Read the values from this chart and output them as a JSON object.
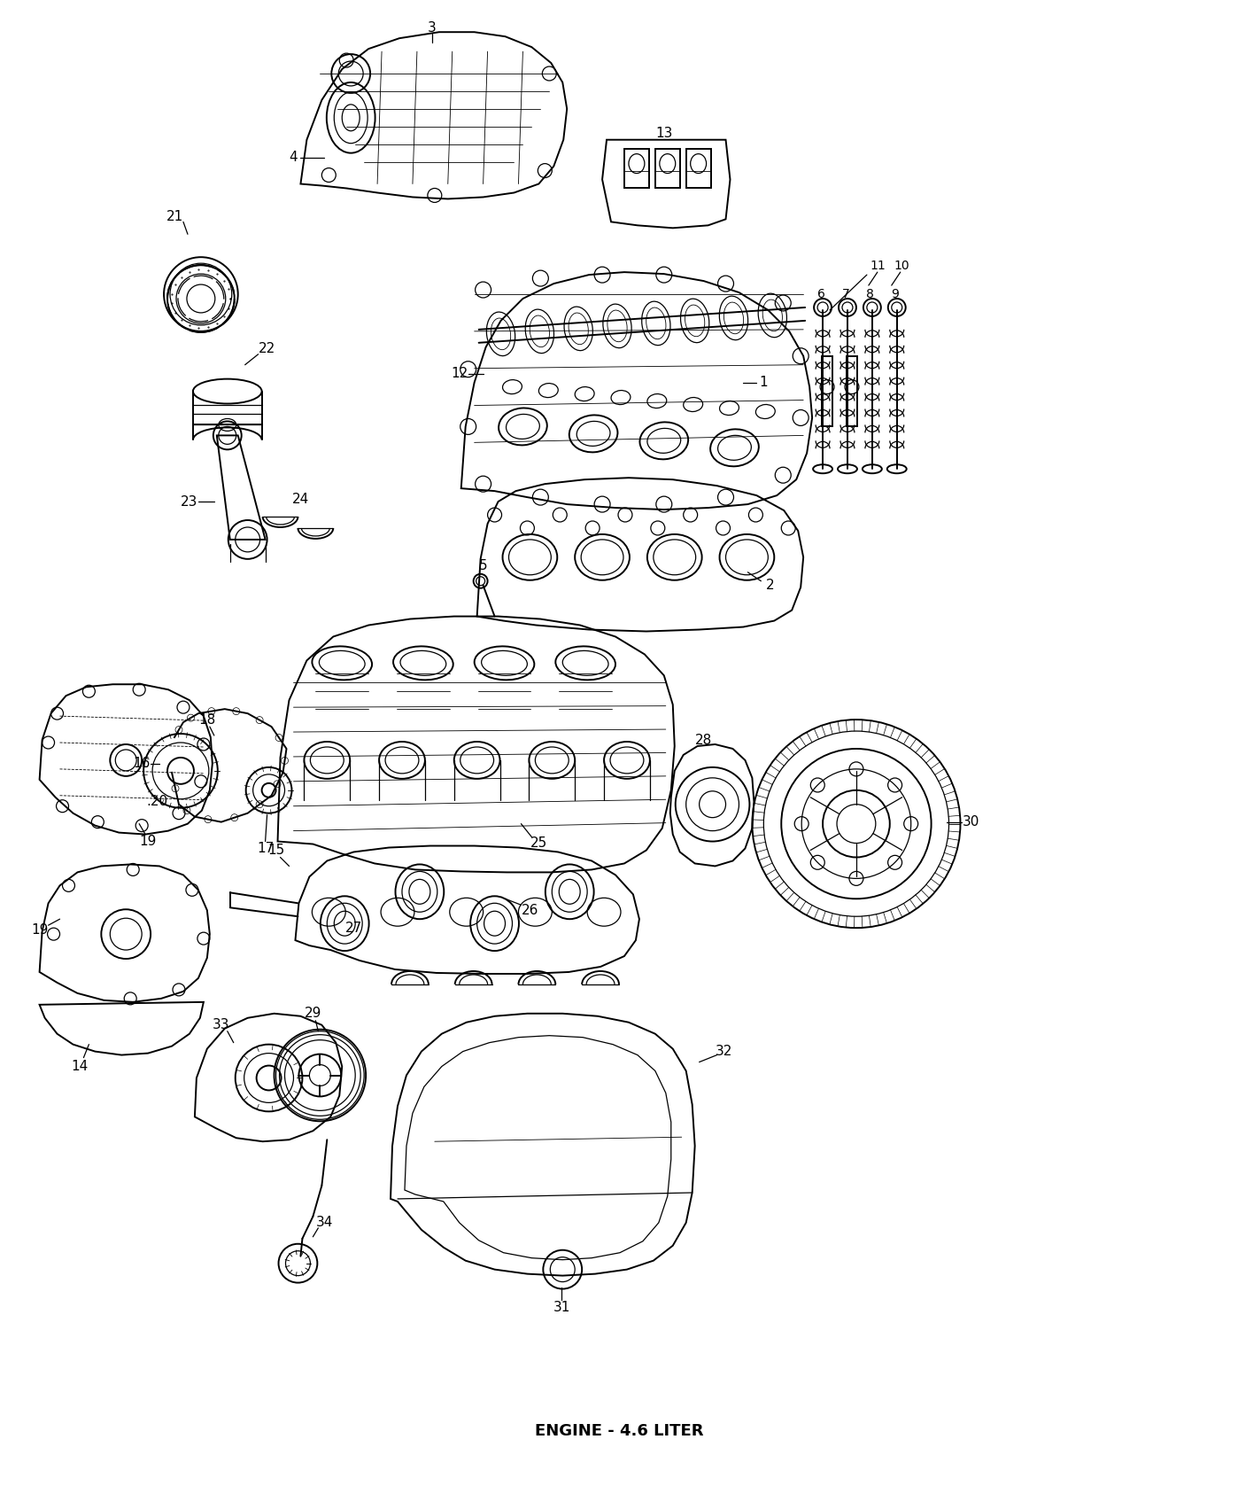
{
  "title": "ENGINE - 4.6 LITER",
  "title_fontsize": 13,
  "title_fontweight": "bold",
  "bg_color": "#ffffff",
  "fig_width": 13.98,
  "fig_height": 16.77,
  "dpi": 100,
  "label_fontsize": 10.5,
  "label_color": "#000000"
}
